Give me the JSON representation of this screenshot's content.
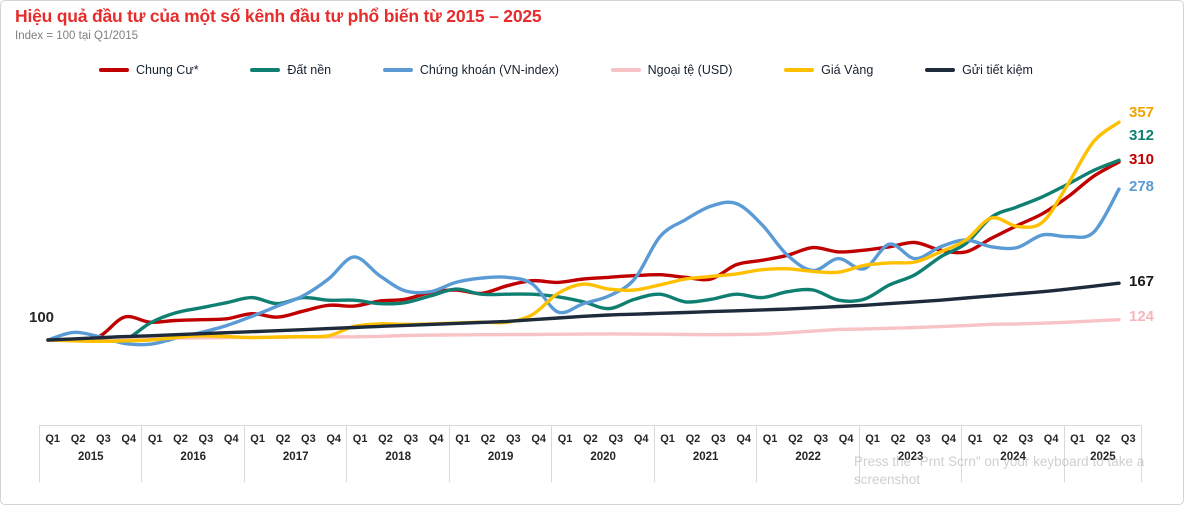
{
  "header": {
    "title": "Hiệu quả đầu tư của một số kênh đầu tư phổ biến từ 2015 – 2025",
    "subtitle": "Index = 100 tại Q1/2015",
    "title_color": "#e62c2c"
  },
  "legend": {
    "items": [
      {
        "label": "Chung Cư*",
        "color": "#c00000"
      },
      {
        "label": "Đất nền",
        "color": "#0f7f72"
      },
      {
        "label": "Chứng khoán (VN-index)",
        "color": "#5b9bd5"
      },
      {
        "label": "Ngoại tệ (USD)",
        "color": "#f8c3c7"
      },
      {
        "label": "Giá Vàng",
        "color": "#ffc000"
      },
      {
        "label": "Gửi tiết kiệm",
        "color": "#1e2b3c"
      }
    ]
  },
  "chart": {
    "start_label": "100",
    "end_labels": [
      {
        "text": "357",
        "color": "#f0a200"
      },
      {
        "text": "312",
        "color": "#0f7f72"
      },
      {
        "text": "310",
        "color": "#c00000"
      },
      {
        "text": "278",
        "color": "#5b9bd5"
      },
      {
        "text": "167",
        "color": "#1a1a1a"
      },
      {
        "text": "124",
        "color": "#f5b6ba"
      }
    ]
  },
  "axis": {
    "years": [
      {
        "label": "2015",
        "quarters": [
          "Q1",
          "Q2",
          "Q3",
          "Q4"
        ]
      },
      {
        "label": "2016",
        "quarters": [
          "Q1",
          "Q2",
          "Q3",
          "Q4"
        ]
      },
      {
        "label": "2017",
        "quarters": [
          "Q1",
          "Q2",
          "Q3",
          "Q4"
        ]
      },
      {
        "label": "2018",
        "quarters": [
          "Q1",
          "Q2",
          "Q3",
          "Q4"
        ]
      },
      {
        "label": "2019",
        "quarters": [
          "Q1",
          "Q2",
          "Q3",
          "Q4"
        ]
      },
      {
        "label": "2020",
        "quarters": [
          "Q1",
          "Q2",
          "Q3",
          "Q4"
        ]
      },
      {
        "label": "2021",
        "quarters": [
          "Q1",
          "Q2",
          "Q3",
          "Q4"
        ]
      },
      {
        "label": "2022",
        "quarters": [
          "Q1",
          "Q2",
          "Q3",
          "Q4"
        ]
      },
      {
        "label": "2023",
        "quarters": [
          "Q1",
          "Q2",
          "Q3",
          "Q4"
        ]
      },
      {
        "label": "2024",
        "quarters": [
          "Q1",
          "Q2",
          "Q3",
          "Q4"
        ]
      },
      {
        "label": "2025",
        "quarters": [
          "Q1",
          "Q2",
          "Q3"
        ]
      }
    ]
  },
  "watermark": "Press the \"Prnt Scrn\" on your keyboard to take a screenshot",
  "chart_data": {
    "type": "line",
    "title": "Hiệu quả đầu tư của một số kênh đầu tư phổ biến từ 2015 – 2025",
    "subtitle": "Index = 100 tại Q1/2015",
    "index_base": "Q1/2015 = 100",
    "grid": false,
    "legend_position": "top",
    "ylim": [
      90,
      370
    ],
    "x_labels": [
      "Q1 2015",
      "Q2 2015",
      "Q3 2015",
      "Q4 2015",
      "Q1 2016",
      "Q2 2016",
      "Q3 2016",
      "Q4 2016",
      "Q1 2017",
      "Q2 2017",
      "Q3 2017",
      "Q4 2017",
      "Q1 2018",
      "Q2 2018",
      "Q3 2018",
      "Q4 2018",
      "Q1 2019",
      "Q2 2019",
      "Q3 2019",
      "Q4 2019",
      "Q1 2020",
      "Q2 2020",
      "Q3 2020",
      "Q4 2020",
      "Q1 2021",
      "Q2 2021",
      "Q3 2021",
      "Q4 2021",
      "Q1 2022",
      "Q2 2022",
      "Q3 2022",
      "Q4 2022",
      "Q1 2023",
      "Q2 2023",
      "Q3 2023",
      "Q4 2023",
      "Q1 2024",
      "Q2 2024",
      "Q3 2024",
      "Q4 2024",
      "Q1 2025",
      "Q2 2025",
      "Q3 2025"
    ],
    "series": [
      {
        "name": "Chung Cư*",
        "color": "#c00000",
        "end_value": 310,
        "values": [
          100,
          100,
          104,
          127,
          121,
          123,
          124,
          125,
          131,
          127,
          134,
          141,
          140,
          146,
          148,
          156,
          159,
          155,
          164,
          170,
          168,
          172,
          174,
          176,
          177,
          174,
          172,
          189,
          194,
          200,
          209,
          204,
          206,
          210,
          215,
          206,
          204,
          220,
          235,
          249,
          269,
          293,
          310
        ]
      },
      {
        "name": "Đất nền",
        "color": "#0f7f72",
        "end_value": 312,
        "values": [
          100,
          100,
          100,
          100,
          120,
          132,
          138,
          144,
          150,
          143,
          150,
          147,
          147,
          143,
          144,
          152,
          160,
          154,
          154,
          154,
          151,
          145,
          137,
          148,
          154,
          145,
          148,
          154,
          150,
          157,
          159,
          147,
          148,
          165,
          177,
          198,
          214,
          245,
          257,
          269,
          284,
          300,
          312
        ]
      },
      {
        "name": "Chứng khoán (VN-index)",
        "color": "#5b9bd5",
        "end_value": 278,
        "values": [
          100,
          109,
          104,
          96,
          95,
          102,
          109,
          117,
          128,
          140,
          152,
          172,
          198,
          176,
          158,
          157,
          168,
          173,
          174,
          166,
          133,
          143,
          152,
          172,
          222,
          242,
          258,
          261,
          236,
          200,
          182,
          196,
          184,
          213,
          196,
          210,
          218,
          210,
          209,
          224,
          222,
          227,
          278
        ]
      },
      {
        "name": "Ngoại tệ (USD)",
        "color": "#f8c3c7",
        "end_value": 124,
        "values": [
          100,
          100.5,
          101.5,
          102,
          102,
          102.3,
          102.5,
          102.8,
          103,
          103.2,
          103.4,
          103.6,
          103.8,
          104.3,
          105.3,
          105.8,
          106,
          106.2,
          106.4,
          106.5,
          106.8,
          107,
          107.2,
          107,
          106.8,
          106.5,
          106.3,
          106.5,
          107,
          108.5,
          110.5,
          112.5,
          113,
          113.8,
          114.8,
          115.8,
          117,
          118.5,
          119,
          119.8,
          121,
          122.5,
          124
        ]
      },
      {
        "name": "Giá Vàng",
        "color": "#ffc000",
        "end_value": 357,
        "values": [
          100,
          99,
          98.5,
          99,
          100,
          103,
          105,
          104,
          103,
          103.5,
          104,
          105,
          116,
          119,
          118.5,
          119,
          120,
          121,
          121,
          130,
          155,
          166,
          160,
          159,
          165,
          172,
          175,
          178,
          183,
          184,
          181,
          180,
          188,
          191,
          192,
          204,
          218,
          244,
          234,
          239,
          284,
          334,
          357
        ]
      },
      {
        "name": "Gửi tiết kiệm",
        "color": "#1e2b3c",
        "end_value": 167,
        "values": [
          100,
          101.3,
          102.6,
          104,
          105,
          106.2,
          107.4,
          108.6,
          109.8,
          111,
          112.2,
          113.5,
          114.8,
          116,
          117.2,
          118.4,
          119.6,
          120.8,
          122,
          124,
          126,
          128,
          129.5,
          130.5,
          131.5,
          132.5,
          133.5,
          134.5,
          135.5,
          136.5,
          138,
          139.5,
          141,
          143,
          145,
          147,
          149.5,
          152,
          154.5,
          157,
          160,
          163.5,
          167
        ]
      }
    ]
  }
}
